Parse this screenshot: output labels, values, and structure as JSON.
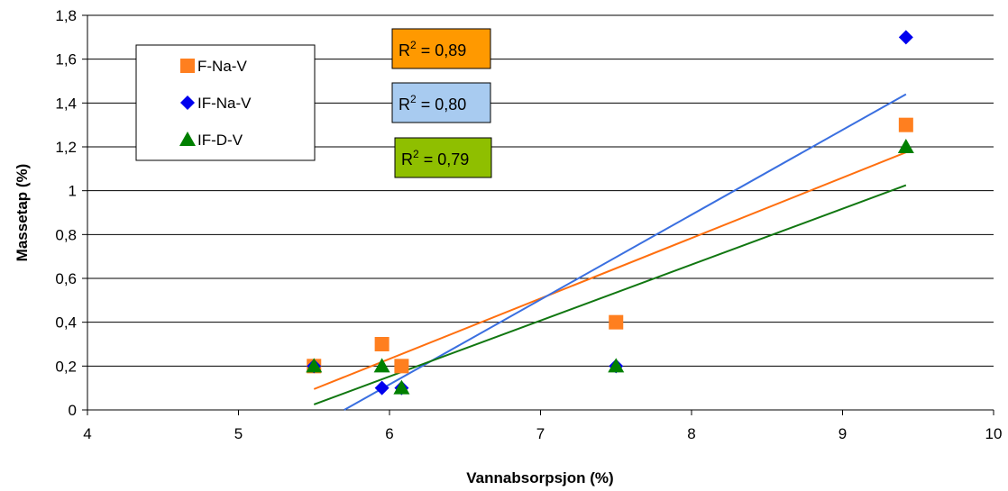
{
  "chart_data": {
    "type": "scatter",
    "xlabel": "Vannabsorpsjon (%)",
    "ylabel": "Massetap (%)",
    "xlim": [
      4,
      10
    ],
    "ylim": [
      0,
      1.8
    ],
    "x_ticks": [
      "4",
      "5",
      "6",
      "7",
      "8",
      "9",
      "10"
    ],
    "y_ticks": [
      "0",
      "0,2",
      "0,4",
      "0,6",
      "0,8",
      "1",
      "1,2",
      "1,4",
      "1,6",
      "1,8"
    ],
    "grid": "horizontal",
    "legend_position": "top-left",
    "series": [
      {
        "name": "F-Na-V",
        "marker": "square",
        "color": "#ff7f1f",
        "points": [
          [
            5.5,
            0.2
          ],
          [
            5.95,
            0.3
          ],
          [
            6.08,
            0.2
          ],
          [
            7.5,
            0.4
          ],
          [
            9.42,
            1.3
          ]
        ],
        "trend": {
          "x": [
            5.5,
            9.42
          ],
          "y": [
            0.095,
            1.175
          ]
        },
        "r2": {
          "base": "R",
          "sup": "2",
          "value": " = 0,89",
          "bg": "#ff9900"
        }
      },
      {
        "name": "IF-Na-V",
        "marker": "diamond",
        "color": "#0000ee",
        "points": [
          [
            5.5,
            0.2
          ],
          [
            5.95,
            0.1
          ],
          [
            6.08,
            0.1
          ],
          [
            7.5,
            0.2
          ],
          [
            9.42,
            1.7
          ]
        ],
        "trend": {
          "x": [
            5.7,
            9.42
          ],
          "y": [
            0.0,
            1.44
          ]
        },
        "r2": {
          "base": "R",
          "sup": "2",
          "value": " = 0,80",
          "bg": "#a8cbf0"
        }
      },
      {
        "name": "IF-D-V",
        "marker": "triangle",
        "color": "#008000",
        "points": [
          [
            5.5,
            0.2
          ],
          [
            5.95,
            0.2
          ],
          [
            6.08,
            0.1
          ],
          [
            7.5,
            0.2
          ],
          [
            9.42,
            1.2
          ]
        ],
        "trend": {
          "x": [
            5.5,
            9.42
          ],
          "y": [
            0.025,
            1.025
          ]
        },
        "r2": {
          "base": "R",
          "sup": "2",
          "value": " = 0,79",
          "bg": "#8fbf00"
        }
      }
    ],
    "trend_colors": [
      "#ff6f0f",
      "#3a6fe0",
      "#117711"
    ]
  }
}
